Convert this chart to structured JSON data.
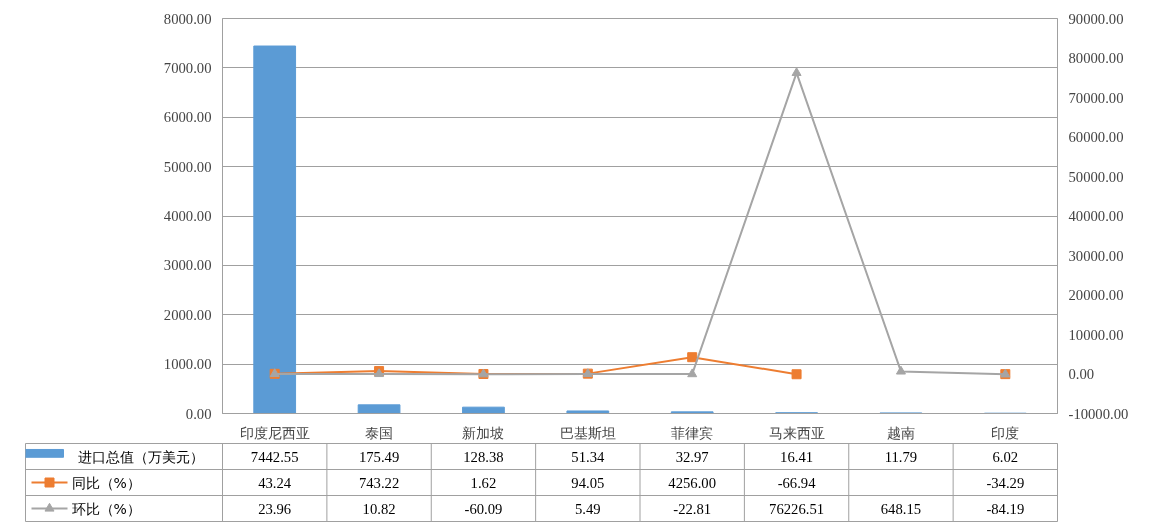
{
  "chart_data": {
    "type": "bar",
    "categories": [
      "印度尼西亚",
      "泰国",
      "新加坡",
      "巴基斯坦",
      "菲律宾",
      "马来西亚",
      "越南",
      "印度"
    ],
    "series": [
      {
        "name": "进口总值（万美元）",
        "color": "#5b9bd5",
        "values": [
          7442.55,
          175.49,
          128.38,
          51.34,
          32.97,
          16.41,
          11.79,
          6.02
        ],
        "value_labels": [
          "7442.55",
          "175.49",
          "128.38",
          "51.34",
          "32.97",
          "16.41",
          "11.79",
          "6.02"
        ]
      },
      {
        "name": "同比（%）",
        "type": "line",
        "axis": "y2",
        "marker": "square",
        "color": "#ed7d31",
        "values": [
          43.24,
          743.22,
          1.62,
          94.05,
          4256.0,
          -66.94,
          null,
          -34.29
        ],
        "value_labels": [
          "43.24",
          "743.22",
          "1.62",
          "94.05",
          "4256.00",
          "-66.94",
          null,
          "-34.29"
        ]
      },
      {
        "name": "环比（%）",
        "type": "line",
        "axis": "y2",
        "marker": "triangle",
        "color": "#a5a5a5",
        "values": [
          23.96,
          10.82,
          -60.09,
          5.49,
          -22.81,
          76226.51,
          648.15,
          -84.19
        ],
        "value_labels": [
          "23.96",
          "10.82",
          "-60.09",
          "5.49",
          "-22.81",
          "76226.51",
          "648.15",
          "-84.19"
        ]
      }
    ],
    "ylim": [
      0,
      8000
    ],
    "yticks": [
      {
        "value": 0,
        "label": "0.00"
      },
      {
        "value": 1000,
        "label": "1000.00"
      },
      {
        "value": 2000,
        "label": "2000.00"
      },
      {
        "value": 3000,
        "label": "3000.00"
      },
      {
        "value": 4000,
        "label": "4000.00"
      },
      {
        "value": 5000,
        "label": "5000.00"
      },
      {
        "value": 6000,
        "label": "6000.00"
      },
      {
        "value": 7000,
        "label": "7000.00"
      },
      {
        "value": 8000,
        "label": "8000.00"
      }
    ],
    "y2lim": [
      -10000,
      90000
    ],
    "y2ticks": [
      {
        "value": -10000,
        "label": "-10000.00"
      },
      {
        "value": 0,
        "label": "0.00"
      },
      {
        "value": 10000,
        "label": "10000.00"
      },
      {
        "value": 20000,
        "label": "20000.00"
      },
      {
        "value": 30000,
        "label": "30000.00"
      },
      {
        "value": 40000,
        "label": "40000.00"
      },
      {
        "value": 50000,
        "label": "50000.00"
      },
      {
        "value": 60000,
        "label": "60000.00"
      },
      {
        "value": 70000,
        "label": "70000.00"
      },
      {
        "value": 80000,
        "label": "80000.00"
      },
      {
        "value": 90000,
        "label": "90000.00"
      }
    ],
    "grid": "y",
    "legend": "bottom"
  }
}
